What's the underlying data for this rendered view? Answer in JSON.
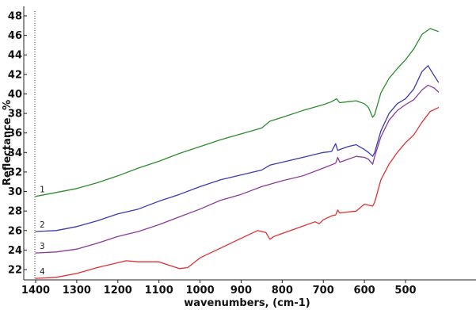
{
  "chart_data": {
    "type": "line",
    "title": "",
    "xlabel": "wavenumbers, (cm-1)",
    "ylabel": "Reflectance, %",
    "xlim": [
      1400,
      420
    ],
    "ylim": [
      21,
      49
    ],
    "x_reversed": true,
    "grid": "dotted-left-edge",
    "xticks": [
      1400,
      1300,
      1200,
      1100,
      1000,
      900,
      800,
      700,
      600,
      500
    ],
    "yticks": [
      22,
      24,
      26,
      28,
      30,
      32,
      34,
      36,
      38,
      40,
      42,
      44,
      46,
      48
    ],
    "series": [
      {
        "name": "1",
        "color": "#2e8b2e",
        "x": [
          1400,
          1350,
          1300,
          1250,
          1200,
          1150,
          1100,
          1050,
          1000,
          950,
          900,
          850,
          830,
          800,
          750,
          700,
          680,
          668,
          660,
          640,
          620,
          600,
          590,
          580,
          575,
          560,
          540,
          520,
          500,
          480,
          460,
          440,
          420
        ],
        "y": [
          29.5,
          29.9,
          30.3,
          30.9,
          31.6,
          32.4,
          33.1,
          33.9,
          34.6,
          35.3,
          35.9,
          36.5,
          37.2,
          37.6,
          38.3,
          38.9,
          39.2,
          39.5,
          39.1,
          39.2,
          39.3,
          39.0,
          38.6,
          37.6,
          37.9,
          40.1,
          41.6,
          42.6,
          43.5,
          44.6,
          46.1,
          46.7,
          46.4
        ]
      },
      {
        "name": "2",
        "color": "#3a3ab0",
        "x": [
          1400,
          1350,
          1300,
          1250,
          1200,
          1150,
          1100,
          1050,
          1000,
          950,
          900,
          850,
          830,
          800,
          750,
          700,
          680,
          670,
          665,
          660,
          640,
          620,
          600,
          590,
          580,
          575,
          560,
          540,
          520,
          500,
          480,
          460,
          445,
          435,
          420
        ],
        "y": [
          25.9,
          26.0,
          26.4,
          27.0,
          27.7,
          28.2,
          29.0,
          29.7,
          30.5,
          31.2,
          31.7,
          32.2,
          32.7,
          33.0,
          33.5,
          34.0,
          34.1,
          34.9,
          34.2,
          34.3,
          34.6,
          34.8,
          34.3,
          34.0,
          33.6,
          34.0,
          36.2,
          38.0,
          39.0,
          39.5,
          40.5,
          42.3,
          42.9,
          42.2,
          41.2
        ]
      },
      {
        "name": "3",
        "color": "#8a3a9a",
        "x": [
          1400,
          1350,
          1300,
          1250,
          1200,
          1150,
          1100,
          1050,
          1000,
          950,
          900,
          850,
          800,
          750,
          700,
          670,
          665,
          660,
          640,
          620,
          600,
          590,
          580,
          575,
          560,
          540,
          520,
          500,
          480,
          460,
          445,
          430,
          420
        ],
        "y": [
          23.7,
          23.8,
          24.1,
          24.7,
          25.4,
          25.9,
          26.6,
          27.4,
          28.2,
          29.1,
          29.7,
          30.5,
          31.1,
          31.6,
          32.4,
          32.9,
          33.5,
          33.0,
          33.3,
          33.6,
          33.5,
          33.3,
          32.8,
          33.6,
          35.6,
          37.3,
          38.3,
          38.9,
          39.4,
          40.4,
          40.9,
          40.6,
          40.2
        ]
      },
      {
        "name": "4",
        "color": "#e03030",
        "x": [
          1400,
          1350,
          1300,
          1250,
          1200,
          1180,
          1150,
          1100,
          1080,
          1050,
          1030,
          1000,
          950,
          900,
          860,
          840,
          830,
          820,
          800,
          760,
          720,
          710,
          700,
          680,
          670,
          665,
          660,
          640,
          620,
          600,
          580,
          575,
          560,
          540,
          520,
          500,
          480,
          460,
          440,
          420
        ],
        "y": [
          21.1,
          21.2,
          21.6,
          22.2,
          22.7,
          22.9,
          22.8,
          22.8,
          22.5,
          22.1,
          22.2,
          23.2,
          24.2,
          25.2,
          26.0,
          25.8,
          25.1,
          25.4,
          25.7,
          26.3,
          26.9,
          26.7,
          27.1,
          27.5,
          27.6,
          28.1,
          27.8,
          27.9,
          28.0,
          28.7,
          28.5,
          28.9,
          31.2,
          32.8,
          34.0,
          35.0,
          35.8,
          37.1,
          38.2,
          38.6
        ]
      }
    ]
  }
}
